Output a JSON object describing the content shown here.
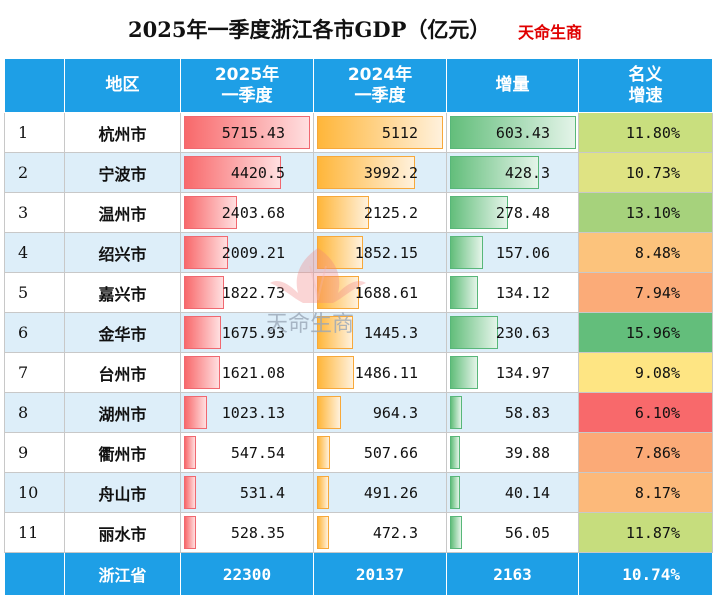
{
  "title": "2025年一季度浙江各市GDP（亿元）",
  "brand": "天命生商",
  "watermark_text": "天命生商",
  "colors": {
    "header_bg": "#1e9fe6",
    "bar_2025": "#f8696b",
    "bar_2024": "#ffb63a",
    "bar_increase": "#63be7b",
    "brand_red": "#e00000"
  },
  "headers": {
    "rank": "",
    "region": "地区",
    "gdp_2025_line1": "2025年",
    "gdp_2025_line2": "一季度",
    "gdp_2024_line1": "2024年",
    "gdp_2024_line2": "一季度",
    "increase": "增量",
    "rate_line1": "名义",
    "rate_line2": "增速"
  },
  "chart_data": {
    "type": "table",
    "columns": [
      "",
      "地区",
      "2025年一季度",
      "2024年一季度",
      "增量",
      "名义增速"
    ],
    "rows": [
      {
        "rank": "1",
        "region": "杭州市",
        "gdp_2025": "5715.43",
        "gdp_2024": "5112",
        "increase": "603.43",
        "rate": "11.80%",
        "rate_color": "#c9df7e"
      },
      {
        "rank": "2",
        "region": "宁波市",
        "gdp_2025": "4420.5",
        "gdp_2024": "3992.2",
        "increase": "428.3",
        "rate": "10.73%",
        "rate_color": "#dfe383"
      },
      {
        "rank": "3",
        "region": "温州市",
        "gdp_2025": "2403.68",
        "gdp_2024": "2125.2",
        "increase": "278.48",
        "rate": "13.10%",
        "rate_color": "#a6d27c"
      },
      {
        "rank": "4",
        "region": "绍兴市",
        "gdp_2025": "2009.21",
        "gdp_2024": "1852.15",
        "increase": "157.06",
        "rate": "8.48%",
        "rate_color": "#fcc37c"
      },
      {
        "rank": "5",
        "region": "嘉兴市",
        "gdp_2025": "1822.73",
        "gdp_2024": "1688.61",
        "increase": "134.12",
        "rate": "7.94%",
        "rate_color": "#fbab78"
      },
      {
        "rank": "6",
        "region": "金华市",
        "gdp_2025": "1675.93",
        "gdp_2024": "1445.3",
        "increase": "230.63",
        "rate": "15.96%",
        "rate_color": "#63be7b"
      },
      {
        "rank": "7",
        "region": "台州市",
        "gdp_2025": "1621.08",
        "gdp_2024": "1486.11",
        "increase": "134.97",
        "rate": "9.08%",
        "rate_color": "#fee583"
      },
      {
        "rank": "8",
        "region": "湖州市",
        "gdp_2025": "1023.13",
        "gdp_2024": "964.3",
        "increase": "58.83",
        "rate": "6.10%",
        "rate_color": "#f8696b"
      },
      {
        "rank": "9",
        "region": "衢州市",
        "gdp_2025": "547.54",
        "gdp_2024": "507.66",
        "increase": "39.88",
        "rate": "7.86%",
        "rate_color": "#fbaa77"
      },
      {
        "rank": "10",
        "region": "舟山市",
        "gdp_2025": "531.4",
        "gdp_2024": "491.26",
        "increase": "40.14",
        "rate": "8.17%",
        "rate_color": "#fcb97a"
      },
      {
        "rank": "11",
        "region": "丽水市",
        "gdp_2025": "528.35",
        "gdp_2024": "472.3",
        "increase": "56.05",
        "rate": "11.87%",
        "rate_color": "#c6dd7d"
      }
    ],
    "total": {
      "region": "浙江省",
      "gdp_2025": "22300",
      "gdp_2024": "20137",
      "increase": "2163",
      "rate": "10.74%"
    }
  }
}
